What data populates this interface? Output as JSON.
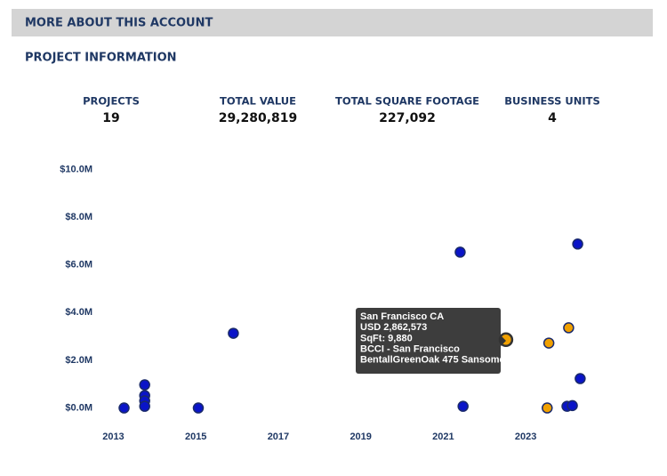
{
  "header": {
    "title": "MORE ABOUT THIS ACCOUNT"
  },
  "section": {
    "title": "PROJECT INFORMATION"
  },
  "stats": [
    {
      "label": "PROJECTS",
      "value": "19"
    },
    {
      "label": "TOTAL VALUE",
      "value": "29,280,819"
    },
    {
      "label": "TOTAL SQUARE FOOTAGE",
      "value": "227,092"
    },
    {
      "label": "BUSINESS UNITS",
      "value": "4"
    }
  ],
  "chart_data": {
    "type": "scatter",
    "x": [
      2013.26,
      2013.76,
      2013.76,
      2013.76,
      2013.76,
      2015.06,
      2015.91,
      2021.41,
      2021.48,
      2022.52,
      2023.56,
      2023.52,
      2024.04,
      2024.26,
      2024.32,
      2024.0,
      2024.13
    ],
    "values": [
      0,
      970000,
      520000,
      300000,
      70000,
      0,
      3130000,
      6530000,
      70000,
      2862573,
      2720000,
      0,
      3360000,
      6870000,
      1230000,
      70000,
      100000
    ],
    "point_colors": [
      "#0a14c8",
      "#0a14c8",
      "#0a14c8",
      "#0a14c8",
      "#0a14c8",
      "#0a14c8",
      "#0a14c8",
      "#0a14c8",
      "#0a14c8",
      "#f0a000",
      "#f0a000",
      "#f0a000",
      "#f0a000",
      "#0a14c8",
      "#0a14c8",
      "#0a14c8",
      "#0a14c8"
    ],
    "highlight": 9,
    "xlim": [
      2012.3,
      2024.7
    ],
    "xticks": [
      2013,
      2015,
      2017,
      2019,
      2021,
      2023
    ],
    "ylim": [
      -800000,
      10200000
    ],
    "yticks": [
      {
        "value": 0,
        "label": "$0.0M"
      },
      {
        "value": 2000000,
        "label": "$2.0M"
      },
      {
        "value": 4000000,
        "label": "$4.0M"
      },
      {
        "value": 6000000,
        "label": "$6.0M"
      },
      {
        "value": 8000000,
        "label": "$8.0M"
      },
      {
        "value": 10000000,
        "label": "$10.0M"
      }
    ],
    "tooltip": {
      "lines": [
        "San Francisco CA",
        "USD 2,862,573",
        "SqFt: 9,880",
        "BCCI - San Francisco",
        "BentallGreenOak 475 Sansome"
      ]
    }
  }
}
